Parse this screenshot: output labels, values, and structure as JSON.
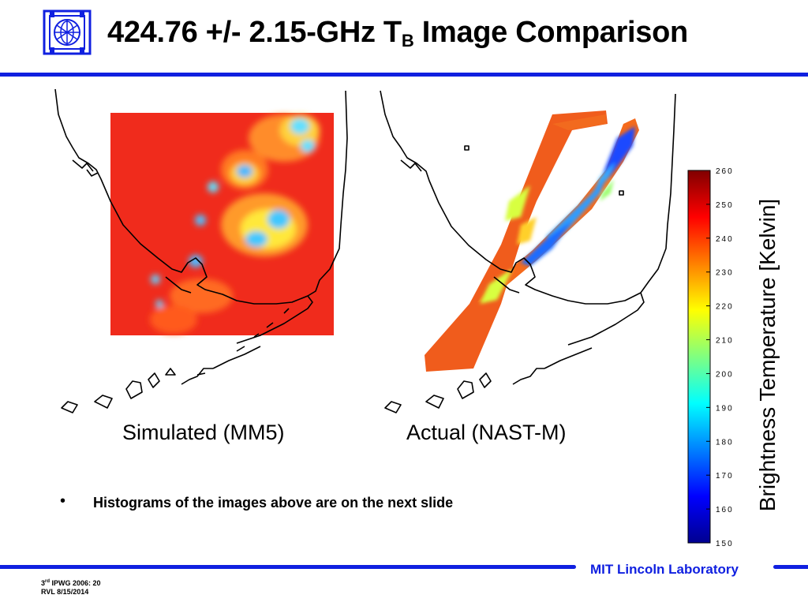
{
  "slide": {
    "title_main": "424.76 +/- 2.15-GHz T",
    "title_sub": "B",
    "title_end": " Image Comparison",
    "caption_simulated": "Simulated (MM5)",
    "caption_actual": "Actual (NAST-M)",
    "bullet_glyph": "•",
    "bullet_text": "Histograms of the images above are on the next slide",
    "lab_name": "MIT Lincoln Laboratory",
    "footer_num": "3",
    "footer_sup": "rd",
    "footer_line1_rest": " IPWG 2006: 20",
    "footer_line2": "RVL 8/15/2014"
  },
  "colorbar": {
    "label": "Brightness Temperature [Kelvin]",
    "min": 150,
    "max": 260,
    "ticks": [
      "260",
      "250",
      "240",
      "230",
      "220",
      "210",
      "200",
      "190",
      "180",
      "170",
      "160",
      "150"
    ],
    "colormap": [
      "#00008f",
      "#0000ff",
      "#0080ff",
      "#00ffff",
      "#80ff80",
      "#ffff00",
      "#ff8000",
      "#ff0000",
      "#800000"
    ]
  },
  "colors": {
    "accent_blue": "#1020e0",
    "background": "#ffffff"
  }
}
